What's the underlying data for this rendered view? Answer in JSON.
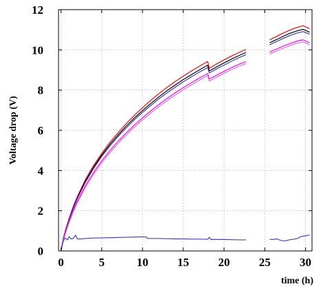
{
  "chart_data": {
    "type": "line",
    "title": "",
    "xlabel": "time (h)",
    "ylabel": "Voltage drop (V)",
    "xlim": [
      -0.3,
      30.8
    ],
    "ylim": [
      0,
      12
    ],
    "xticks": [
      "0",
      "5",
      "10",
      "15",
      "20",
      "25",
      "30"
    ],
    "yticks": [
      "0",
      "2",
      "4",
      "6",
      "8",
      "10",
      "12"
    ],
    "grid": true,
    "legend": "none",
    "series": [
      {
        "color": "#ff0000",
        "segments": [
          [
            [
              0,
              0
            ],
            [
              0.3,
              0.65
            ],
            [
              0.6,
              1.1
            ],
            [
              1,
              1.62
            ],
            [
              1.5,
              2.2
            ],
            [
              2,
              2.7
            ],
            [
              3,
              3.55
            ],
            [
              4,
              4.25
            ],
            [
              5,
              4.85
            ],
            [
              6,
              5.4
            ],
            [
              7,
              5.88
            ],
            [
              8,
              6.33
            ],
            [
              9,
              6.74
            ],
            [
              10,
              7.12
            ],
            [
              11,
              7.48
            ],
            [
              12,
              7.82
            ],
            [
              13,
              8.13
            ],
            [
              14,
              8.42
            ],
            [
              15,
              8.69
            ],
            [
              16,
              8.95
            ],
            [
              17,
              9.19
            ],
            [
              18,
              9.42
            ],
            [
              18.2,
              9.08
            ],
            [
              19,
              9.28
            ],
            [
              20,
              9.5
            ],
            [
              21,
              9.71
            ],
            [
              22,
              9.9
            ],
            [
              22.7,
              10.02
            ]
          ],
          [
            [
              25.6,
              10.5
            ],
            [
              26,
              10.58
            ],
            [
              27,
              10.78
            ],
            [
              28,
              10.97
            ],
            [
              29,
              11.12
            ],
            [
              29.7,
              11.2
            ],
            [
              30.5,
              11.05
            ]
          ]
        ]
      },
      {
        "color": "#000000",
        "segments": [
          [
            [
              0,
              0
            ],
            [
              0.3,
              0.62
            ],
            [
              0.6,
              1.06
            ],
            [
              1,
              1.58
            ],
            [
              1.5,
              2.15
            ],
            [
              2,
              2.65
            ],
            [
              3,
              3.48
            ],
            [
              4,
              4.17
            ],
            [
              5,
              4.77
            ],
            [
              6,
              5.3
            ],
            [
              7,
              5.77
            ],
            [
              8,
              6.21
            ],
            [
              9,
              6.61
            ],
            [
              10,
              6.98
            ],
            [
              11,
              7.33
            ],
            [
              12,
              7.66
            ],
            [
              13,
              7.97
            ],
            [
              14,
              8.25
            ],
            [
              15,
              8.52
            ],
            [
              16,
              8.77
            ],
            [
              17,
              9.01
            ],
            [
              18,
              9.24
            ],
            [
              18.2,
              8.95
            ],
            [
              19,
              9.13
            ],
            [
              20,
              9.35
            ],
            [
              21,
              9.56
            ],
            [
              22,
              9.75
            ],
            [
              22.7,
              9.87
            ]
          ],
          [
            [
              25.6,
              10.35
            ],
            [
              26,
              10.43
            ],
            [
              27,
              10.62
            ],
            [
              28,
              10.81
            ],
            [
              29,
              10.95
            ],
            [
              29.7,
              11.02
            ],
            [
              30.5,
              10.88
            ]
          ]
        ]
      },
      {
        "color": "#3a3aa8",
        "segments": [
          [
            [
              0,
              0
            ],
            [
              0.3,
              0.6
            ],
            [
              0.6,
              1.03
            ],
            [
              1,
              1.55
            ],
            [
              1.5,
              2.11
            ],
            [
              2,
              2.6
            ],
            [
              3,
              3.42
            ],
            [
              4,
              4.1
            ],
            [
              5,
              4.7
            ],
            [
              6,
              5.22
            ],
            [
              7,
              5.69
            ],
            [
              8,
              6.12
            ],
            [
              9,
              6.52
            ],
            [
              10,
              6.89
            ],
            [
              11,
              7.23
            ],
            [
              12,
              7.56
            ],
            [
              13,
              7.86
            ],
            [
              14,
              8.14
            ],
            [
              15,
              8.41
            ],
            [
              16,
              8.66
            ],
            [
              17,
              8.9
            ],
            [
              18,
              9.12
            ],
            [
              18.2,
              8.85
            ],
            [
              19,
              9.03
            ],
            [
              20,
              9.24
            ],
            [
              21,
              9.45
            ],
            [
              22,
              9.64
            ],
            [
              22.7,
              9.76
            ]
          ],
          [
            [
              25.6,
              10.25
            ],
            [
              26,
              10.33
            ],
            [
              27,
              10.52
            ],
            [
              28,
              10.7
            ],
            [
              29,
              10.84
            ],
            [
              29.7,
              10.91
            ],
            [
              30.5,
              10.78
            ]
          ]
        ]
      },
      {
        "color": "#ff00ff",
        "segments": [
          [
            [
              0,
              0
            ],
            [
              0.3,
              0.58
            ],
            [
              0.6,
              0.98
            ],
            [
              1,
              1.47
            ],
            [
              1.5,
              2.0
            ],
            [
              2,
              2.46
            ],
            [
              3,
              3.25
            ],
            [
              4,
              3.91
            ],
            [
              5,
              4.48
            ],
            [
              6,
              4.99
            ],
            [
              7,
              5.45
            ],
            [
              8,
              5.87
            ],
            [
              9,
              6.26
            ],
            [
              10,
              6.62
            ],
            [
              11,
              6.96
            ],
            [
              12,
              7.28
            ],
            [
              13,
              7.58
            ],
            [
              14,
              7.86
            ],
            [
              15,
              8.12
            ],
            [
              16,
              8.37
            ],
            [
              17,
              8.6
            ],
            [
              18,
              8.82
            ],
            [
              18.2,
              8.55
            ],
            [
              19,
              8.72
            ],
            [
              20,
              8.93
            ],
            [
              21,
              9.13
            ],
            [
              22,
              9.31
            ],
            [
              22.7,
              9.42
            ]
          ],
          [
            [
              25.6,
              9.88
            ],
            [
              26,
              9.96
            ],
            [
              27,
              10.14
            ],
            [
              28,
              10.3
            ],
            [
              29,
              10.44
            ],
            [
              29.7,
              10.5
            ],
            [
              30.5,
              10.35
            ]
          ]
        ]
      },
      {
        "color": "#e070e0",
        "segments": [
          [
            [
              0.2,
              0.4
            ],
            [
              0.6,
              0.92
            ],
            [
              1,
              1.4
            ],
            [
              1.5,
              1.93
            ],
            [
              2,
              2.38
            ],
            [
              3,
              3.16
            ],
            [
              4,
              3.81
            ],
            [
              5,
              4.38
            ],
            [
              6,
              4.88
            ],
            [
              7,
              5.34
            ],
            [
              8,
              5.76
            ],
            [
              9,
              6.15
            ],
            [
              10,
              6.51
            ],
            [
              11,
              6.85
            ],
            [
              12,
              7.17
            ],
            [
              13,
              7.47
            ],
            [
              14,
              7.75
            ],
            [
              15,
              8.01
            ],
            [
              16,
              8.26
            ],
            [
              17,
              8.49
            ],
            [
              18,
              8.71
            ],
            [
              18.2,
              8.45
            ],
            [
              19,
              8.62
            ],
            [
              20,
              8.83
            ],
            [
              21,
              9.03
            ],
            [
              22,
              9.21
            ],
            [
              22.7,
              9.32
            ]
          ],
          [
            [
              25.6,
              9.78
            ],
            [
              26,
              9.86
            ],
            [
              27,
              10.04
            ],
            [
              28,
              10.2
            ],
            [
              29,
              10.34
            ],
            [
              29.7,
              10.4
            ],
            [
              30.5,
              10.25
            ]
          ]
        ]
      },
      {
        "color": "#3f3fd8",
        "segments": [
          [
            [
              0,
              0
            ],
            [
              0.25,
              0.45
            ],
            [
              0.5,
              0.65
            ],
            [
              0.8,
              0.55
            ],
            [
              1,
              0.72
            ],
            [
              1.2,
              0.6
            ],
            [
              1.5,
              0.62
            ],
            [
              1.8,
              0.78
            ],
            [
              2,
              0.6
            ],
            [
              2.5,
              0.6
            ],
            [
              3,
              0.62
            ],
            [
              4,
              0.64
            ],
            [
              5,
              0.65
            ],
            [
              6,
              0.66
            ],
            [
              7,
              0.67
            ],
            [
              8,
              0.68
            ],
            [
              9,
              0.69
            ],
            [
              10,
              0.7
            ],
            [
              10.5,
              0.69
            ],
            [
              10.6,
              0.62
            ],
            [
              12,
              0.62
            ],
            [
              13,
              0.61
            ],
            [
              14,
              0.6
            ],
            [
              15,
              0.6
            ],
            [
              16,
              0.59
            ],
            [
              17,
              0.59
            ],
            [
              18,
              0.58
            ],
            [
              18.2,
              0.68
            ],
            [
              18.4,
              0.57
            ],
            [
              20,
              0.57
            ],
            [
              21,
              0.56
            ],
            [
              22,
              0.55
            ],
            [
              22.7,
              0.55
            ]
          ],
          [
            [
              25.6,
              0.58
            ],
            [
              26,
              0.57
            ],
            [
              26.5,
              0.6
            ],
            [
              27,
              0.52
            ],
            [
              27.5,
              0.5
            ],
            [
              28,
              0.55
            ],
            [
              28.5,
              0.58
            ],
            [
              29,
              0.62
            ],
            [
              29.5,
              0.72
            ],
            [
              30,
              0.75
            ],
            [
              30.5,
              0.8
            ]
          ]
        ]
      }
    ]
  }
}
